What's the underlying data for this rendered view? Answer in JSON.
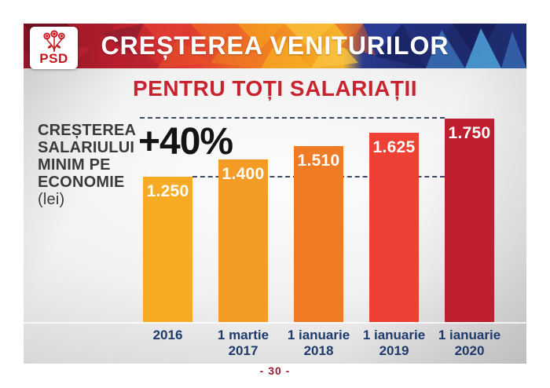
{
  "page": {
    "footer": "- 30 -"
  },
  "logo": {
    "text": "PSD"
  },
  "header": {
    "title": "CREȘTEREA VENITURILOR"
  },
  "subtitle": "PENTRU TOȚI SALARIAȚII",
  "left_panel": {
    "lines": [
      "CREȘTEREA",
      "SALARIULUI",
      "MINIM PE",
      "ECONOMIE"
    ],
    "unit": "(lei)",
    "growth_label": "+40%"
  },
  "colors": {
    "subtitle_red": "#c8232e",
    "footer_red": "#9b1f33",
    "category_navy": "#1e3a6b",
    "annotation_black": "#141414",
    "dashed_line": "#3c4a60"
  },
  "chart_data": {
    "type": "bar",
    "title": "CREȘTEREA SALARIULUI MINIM PE ECONOMIE (lei)",
    "annotation": "+40%",
    "categories": [
      "2016",
      "1 martie 2017",
      "1 ianuarie 2018",
      "1 ianuarie 2019",
      "1 ianuarie 2020"
    ],
    "category_lines": [
      [
        "2016"
      ],
      [
        "1 martie",
        "2017"
      ],
      [
        "1 ianuarie",
        "2018"
      ],
      [
        "1 ianuarie",
        "2019"
      ],
      [
        "1 ianuarie",
        "2020"
      ]
    ],
    "values": [
      1250,
      1400,
      1510,
      1625,
      1750
    ],
    "value_labels": [
      "1.250",
      "1.400",
      "1.510",
      "1.625",
      "1.750"
    ],
    "bar_colors": [
      "#F7AB25",
      "#F49B25",
      "#EF7B24",
      "#EE4035",
      "#BE1E2D"
    ],
    "value_label_color": "#FFFFFF",
    "ylim": [
      0,
      1750
    ],
    "grid": false,
    "legend": false
  }
}
